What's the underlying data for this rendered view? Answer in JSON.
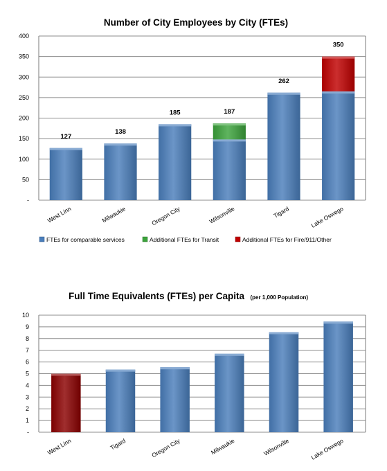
{
  "chart_data": [
    {
      "type": "bar",
      "stacked": true,
      "title": "Number of City Employees by City (FTEs)",
      "categories": [
        "West Linn",
        "Milwaukie",
        "Oregon City",
        "Wilsonville",
        "Tigard",
        "Lake Oswego"
      ],
      "series": [
        {
          "name": "FTEs for comparable services",
          "values": [
            127,
            138,
            185,
            148,
            262,
            265
          ],
          "color": "#4a7ebb"
        },
        {
          "name": "Additional FTEs for Transit",
          "values": [
            0,
            0,
            0,
            39,
            0,
            0
          ],
          "color": "#3ca33c"
        },
        {
          "name": "Additional FTEs for Fire/911/Other",
          "values": [
            0,
            0,
            0,
            0,
            0,
            85
          ],
          "color": "#c00000"
        }
      ],
      "totals": [
        "127",
        "138",
        "185",
        "187",
        "262",
        "350"
      ],
      "ylim": [
        0,
        400
      ],
      "yticks": [
        "-",
        "50",
        "100",
        "150",
        "200",
        "250",
        "300",
        "350",
        "400"
      ],
      "grid": true,
      "legend": "bottom"
    },
    {
      "type": "bar",
      "title": "Full Time Equivalents (FTEs) per Capita",
      "subtitle": "(per 1,000 Population)",
      "categories": [
        "West Linn",
        "Tigard",
        "Oregon City",
        "Milwaukie",
        "Wilsonville",
        "Lake Oswego"
      ],
      "values": [
        5.0,
        5.35,
        5.55,
        6.7,
        8.55,
        9.45
      ],
      "colors": [
        "#8b0000",
        "#4a7ebb",
        "#4a7ebb",
        "#4a7ebb",
        "#4a7ebb",
        "#4a7ebb"
      ],
      "ylim": [
        0,
        10
      ],
      "yticks": [
        "-",
        "1",
        "2",
        "3",
        "4",
        "5",
        "6",
        "7",
        "8",
        "9",
        "10"
      ],
      "grid": true
    }
  ]
}
